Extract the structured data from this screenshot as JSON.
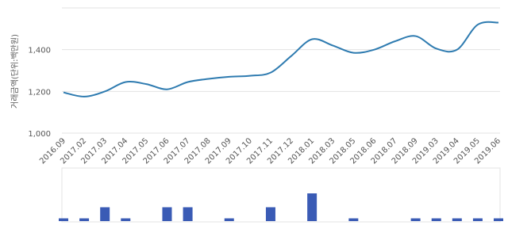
{
  "chart_data": {
    "type": "line",
    "y_label": "거래금액(단위:백만원)",
    "categories": [
      "2016.09",
      "2017.02",
      "2017.03",
      "2017.04",
      "2017.05",
      "2017.06",
      "2017.07",
      "2017.08",
      "2017.09",
      "2017.10",
      "2017.11",
      "2017.12",
      "2018.01",
      "2018.03",
      "2018.05",
      "2018.06",
      "2018.07",
      "2018.09",
      "2019.03",
      "2019.04",
      "2019.05",
      "2019.06"
    ],
    "series": [
      {
        "color": "#2e7bb0",
        "values": [
          1195,
          1175,
          1200,
          1245,
          1235,
          1210,
          1245,
          1260,
          1270,
          1275,
          1290,
          1370,
          1450,
          1420,
          1385,
          1400,
          1440,
          1465,
          1405,
          1400,
          1520,
          1530
        ]
      }
    ],
    "volume": {
      "color": "#3a5bb5",
      "values": [
        1,
        1,
        5,
        1,
        null,
        5,
        5,
        null,
        1,
        null,
        5,
        null,
        10,
        null,
        1,
        null,
        null,
        1,
        1,
        1,
        1,
        1
      ]
    },
    "ylim": [
      1000,
      1600
    ],
    "yticks": [
      {
        "value": 1000,
        "label": "1,000"
      },
      {
        "value": 1200,
        "label": "1,200"
      },
      {
        "value": 1400,
        "label": "1,400"
      }
    ],
    "grid": true
  }
}
